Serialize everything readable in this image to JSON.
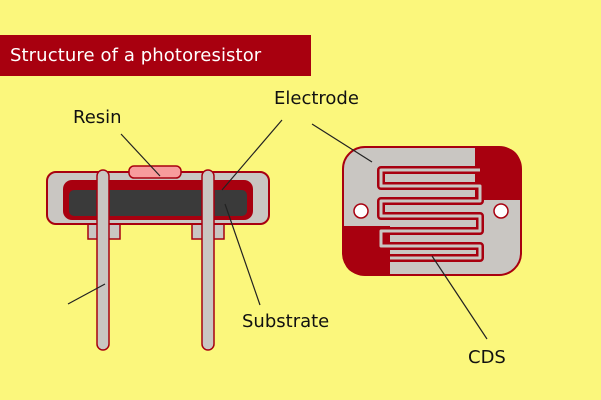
{
  "title": "Structure of a photoresistor",
  "labels": {
    "resin": "Resin",
    "electrode": "Electrode",
    "substrate": "Substrate",
    "cds": "CDS"
  },
  "colors": {
    "background": "#FBF77C",
    "banner": "#A8000F",
    "body_gray": "#C9C6C2",
    "electrode_red": "#A8000F",
    "substrate_dark": "#3A3A3A",
    "resin_pink": "#F79C9C"
  }
}
